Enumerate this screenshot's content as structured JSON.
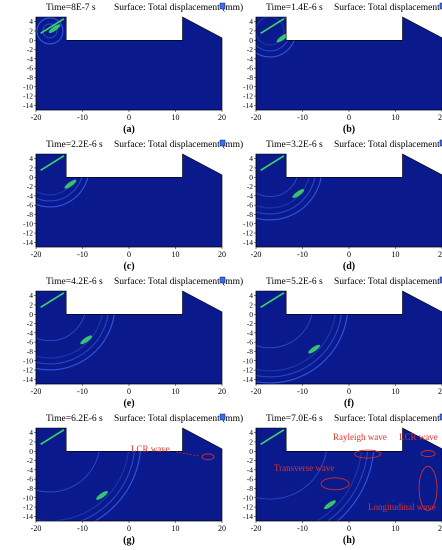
{
  "figure": {
    "panels": [
      {
        "label": "(a)",
        "time_text": "Time=8E-7 s",
        "surface_text": "Surface: Total displacement (mm)",
        "annotations": []
      },
      {
        "label": "(b)",
        "time_text": "Time=1.4E-6 s",
        "surface_text": "Surface: Total displacement (mm)",
        "annotations": []
      },
      {
        "label": "(c)",
        "time_text": "Time=2.2E-6 s",
        "surface_text": "Surface: Total displacement (mm)",
        "annotations": []
      },
      {
        "label": "(d)",
        "time_text": "Time=3.2E-6 s",
        "surface_text": "Surface: Total displacement (mm)",
        "annotations": []
      },
      {
        "label": "(e)",
        "time_text": "Time=4.2E-6 s",
        "surface_text": "Surface: Total displacement (mm)",
        "annotations": []
      },
      {
        "label": "(f)",
        "time_text": "Time=5.2E-6 s",
        "surface_text": "Surface: Total displacement (mm)",
        "annotations": []
      },
      {
        "label": "(g)",
        "time_text": "Time=6.2E-6 s",
        "surface_text": "Surface: Total displacement (mm)",
        "annotations": [
          "LCR wave"
        ]
      },
      {
        "label": "(h)",
        "time_text": "Time=7.0E-6 s",
        "surface_text": "Surface: Total displacement (mm)",
        "annotations": [
          "Rayleigh wave",
          "LCR wave",
          "Transverse wave",
          "Longitudinal wave"
        ]
      }
    ],
    "x_ticks": [
      "-20",
      "-10",
      "0",
      "10",
      "20"
    ],
    "y_ticks": [
      "4",
      "2",
      "0",
      "-2",
      "-4",
      "-6",
      "-8",
      "-10",
      "-12",
      "-14"
    ],
    "colors": {
      "field_background": "#0a1a8c",
      "wavefront": "#3a6cff",
      "hotspot": "#39d66a",
      "annotation": "#e0302a",
      "axis": "#000000"
    }
  }
}
